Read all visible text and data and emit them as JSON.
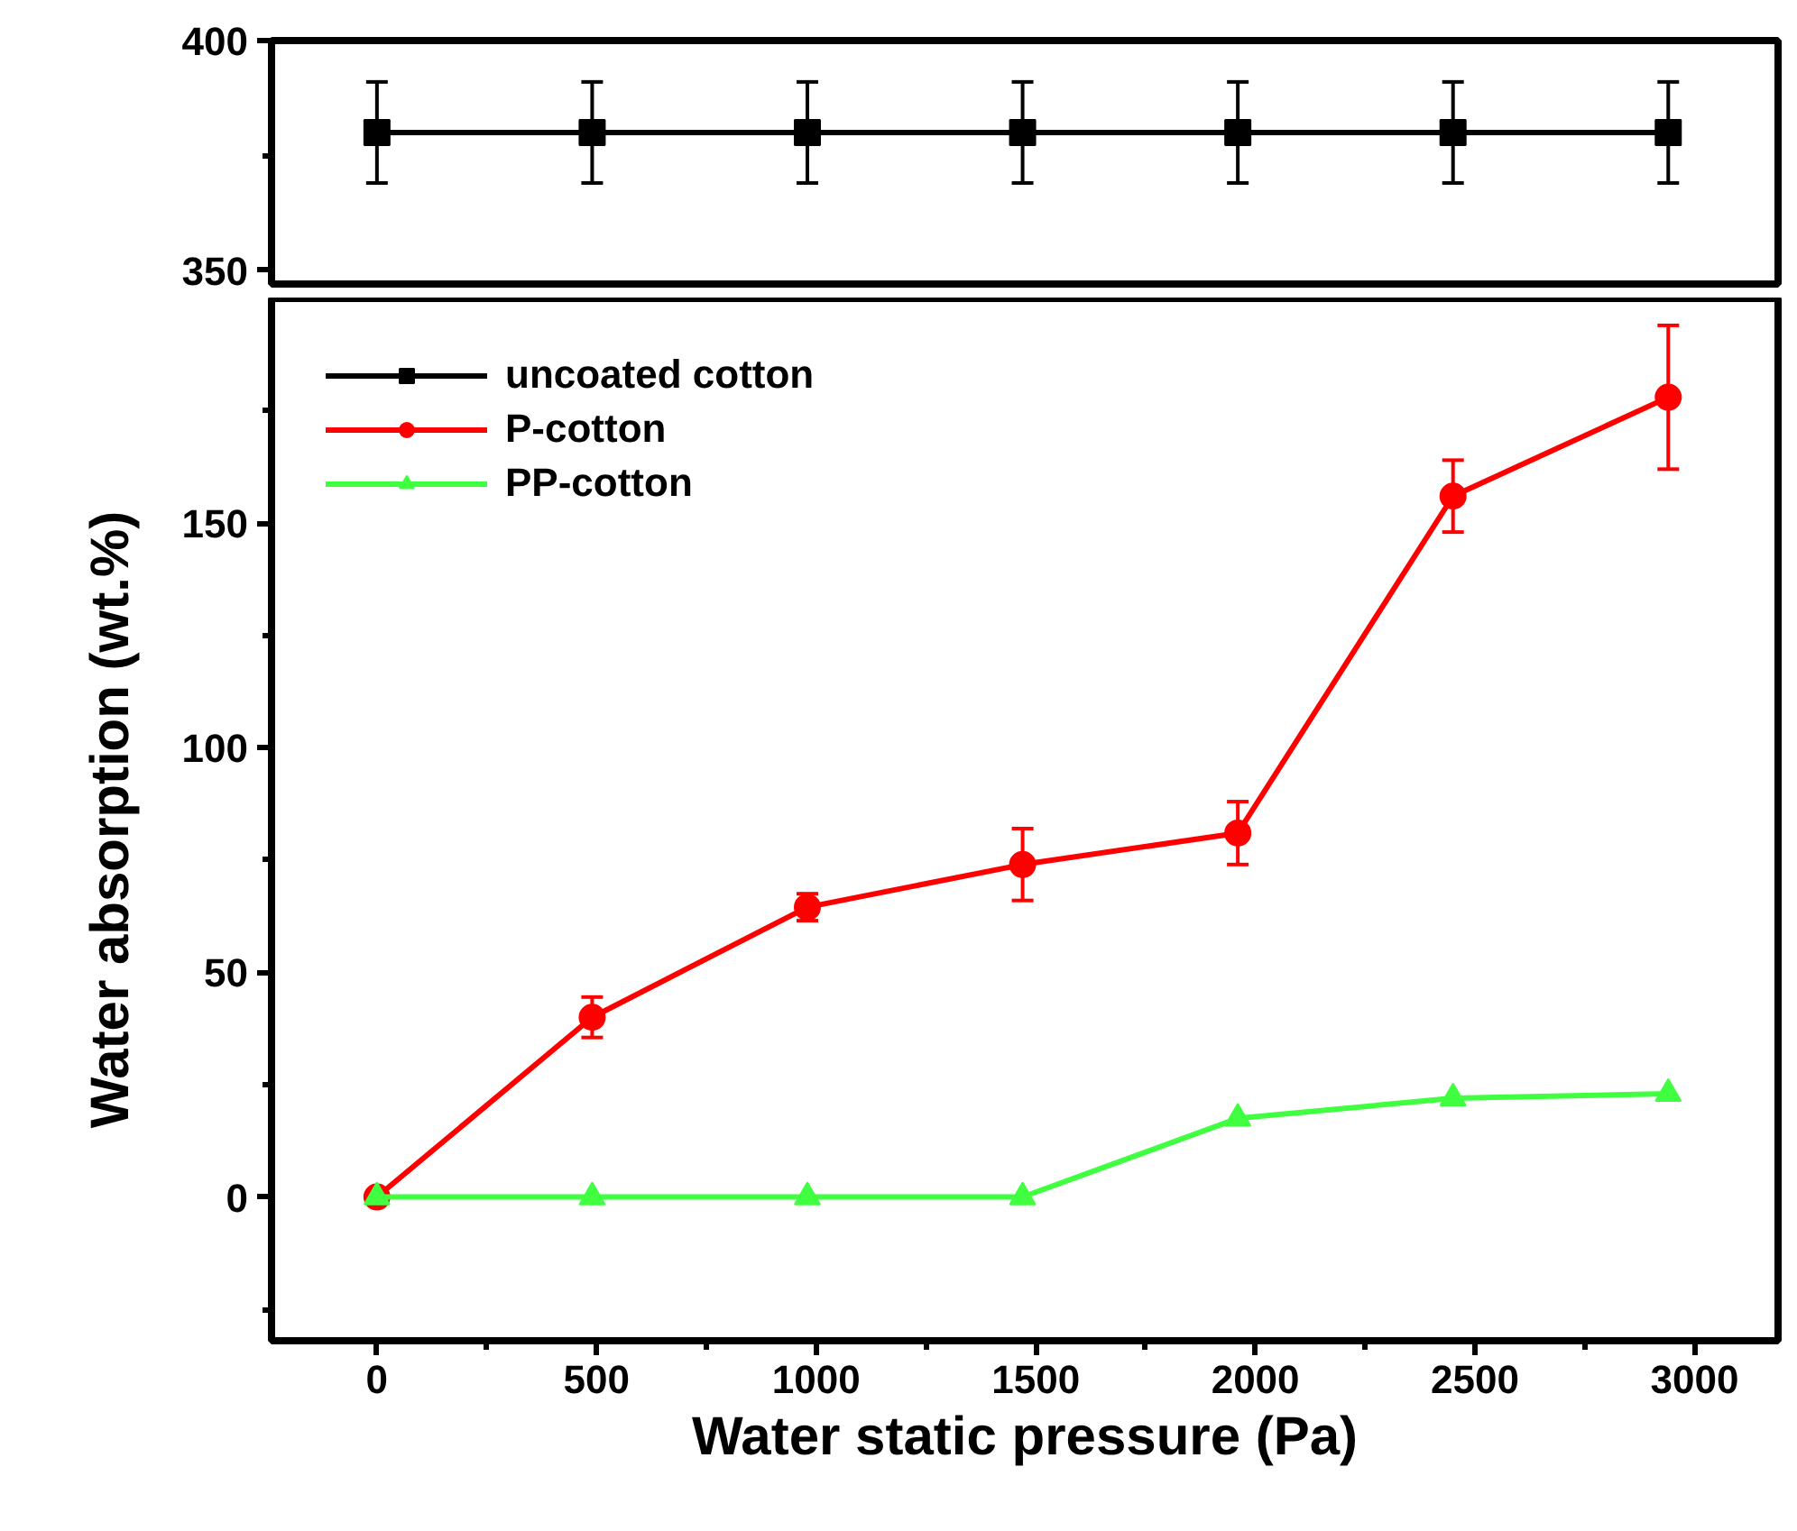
{
  "chart_data": [
    {
      "type": "line",
      "x": [
        0,
        490,
        980,
        1470,
        1960,
        2450,
        2940
      ],
      "xlim": [
        -240,
        3190
      ],
      "xticks": [
        0,
        500,
        1000,
        1500,
        2000,
        2500,
        3000
      ],
      "ylim": [
        347,
        400
      ],
      "yticks": [
        350,
        400
      ],
      "tick_labels": "y",
      "series": [
        {
          "name": "uncoated cotton",
          "color": "#000000",
          "marker": "square",
          "values": [
            380,
            380,
            380,
            380,
            380,
            380,
            380
          ],
          "errors": [
            11,
            11,
            11,
            11,
            11,
            11,
            11
          ]
        }
      ]
    },
    {
      "type": "line",
      "x": [
        0,
        490,
        980,
        1470,
        1960,
        2450,
        2940
      ],
      "xlim": [
        -240,
        3190
      ],
      "xticks": [
        0,
        500,
        1000,
        1500,
        2000,
        2500,
        3000
      ],
      "ylim": [
        -32,
        200
      ],
      "yticks": [
        0,
        50,
        100,
        150
      ],
      "xlabel": "Water static pressure (Pa)",
      "ylabel": "Water absorption (wt.%)",
      "legend": "top left",
      "series": [
        {
          "name": "P-cotton",
          "color": "#ff0000",
          "marker": "circle",
          "values": [
            0,
            40,
            64.5,
            74,
            81,
            156,
            178
          ],
          "errors": [
            null,
            4.5,
            3,
            8,
            7,
            8,
            16
          ]
        },
        {
          "name": "PP-cotton",
          "color": "#40ff40",
          "marker": "triangle",
          "values": [
            0,
            0,
            0,
            0,
            17.5,
            22,
            23
          ]
        }
      ]
    }
  ]
}
